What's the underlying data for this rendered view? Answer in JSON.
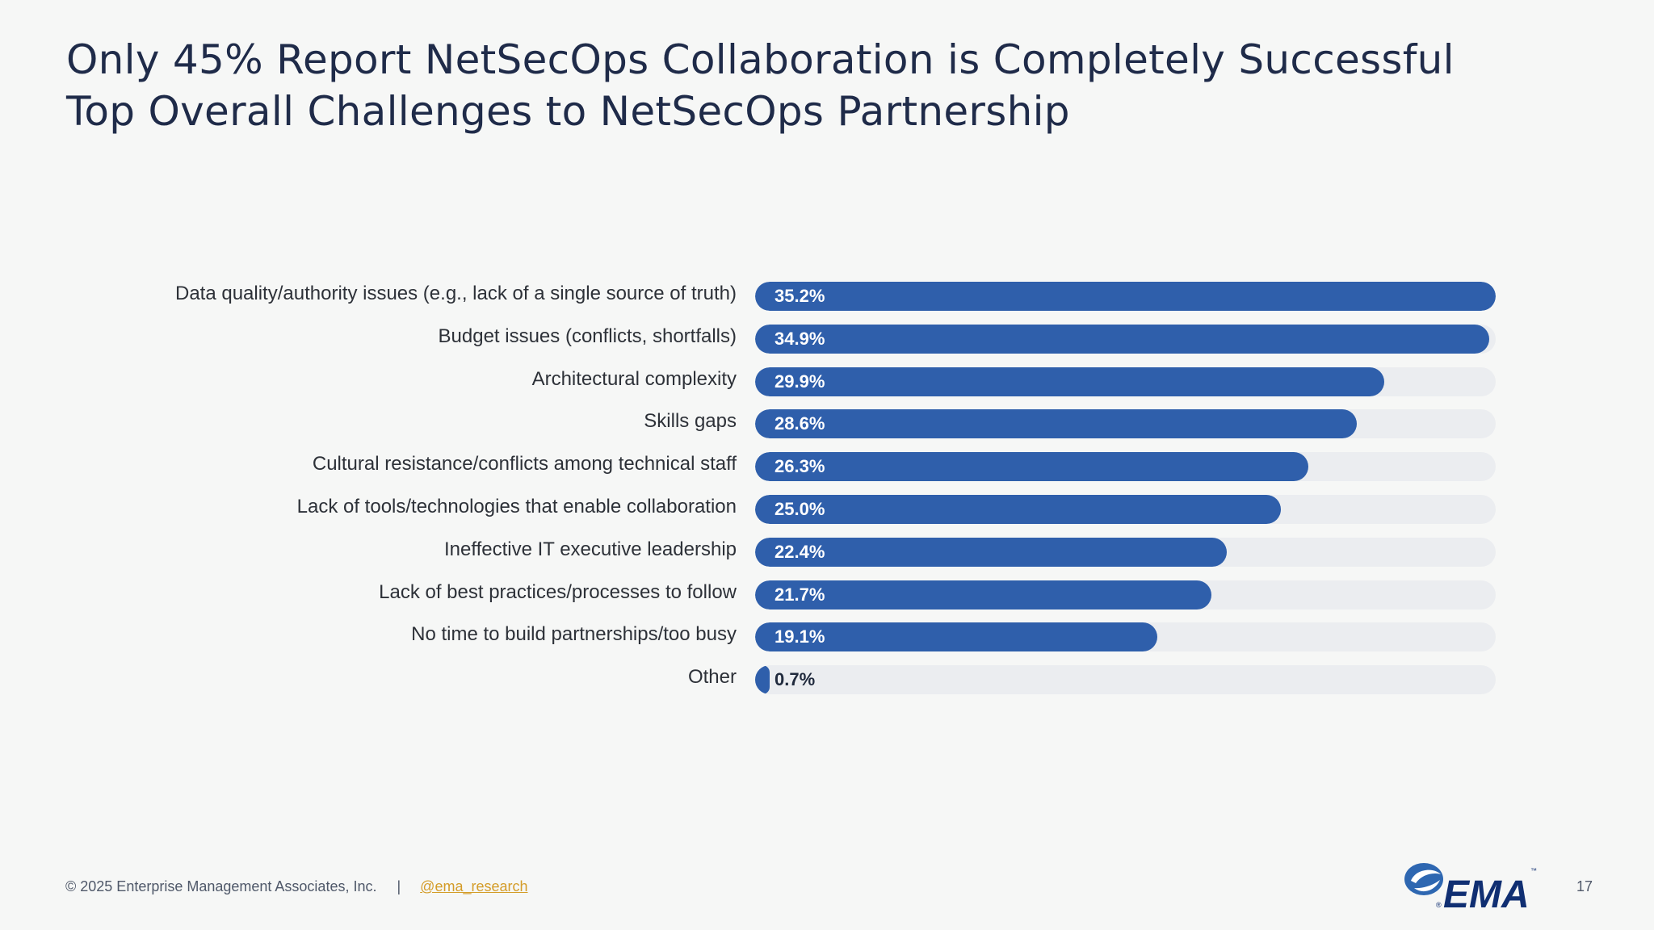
{
  "title": {
    "line1": "Only 45% Report NetSecOps Collaboration is Completely Successful",
    "line2": "Top Overall Challenges to NetSecOps Partnership"
  },
  "colors": {
    "bar": "#2f5fab",
    "track": "#ebedf0",
    "title": "#1f2b49",
    "footer_link": "#d49c28"
  },
  "chart_data": {
    "type": "bar",
    "orientation": "horizontal",
    "categories": [
      "Data quality/authority issues (e.g., lack of a single source of truth)",
      "Budget issues (conflicts, shortfalls)",
      "Architectural complexity",
      "Skills gaps",
      "Cultural resistance/conflicts among technical staff",
      "Lack of tools/technologies that enable collaboration",
      "Ineffective IT executive leadership",
      "Lack of best practices/processes to follow",
      "No time to build partnerships/too busy",
      "Other"
    ],
    "values": [
      35.2,
      34.9,
      29.9,
      28.6,
      26.3,
      25.0,
      22.4,
      21.7,
      19.1,
      0.7
    ],
    "labels": [
      "35.2%",
      "34.9%",
      "29.9%",
      "28.6%",
      "26.3%",
      "25.0%",
      "22.4%",
      "21.7%",
      "19.1%",
      "0.7%"
    ],
    "xlim": [
      0,
      35.2
    ],
    "title": "",
    "xlabel": "",
    "ylabel": "",
    "grid": false,
    "legend": "none"
  },
  "footer": {
    "copyright": "© 2025 Enterprise Management Associates, Inc.",
    "separator": "|",
    "handle": "@ema_research"
  },
  "logo": {
    "text": "EMA",
    "trademark": "™",
    "registered": "®"
  },
  "page_number": "17"
}
